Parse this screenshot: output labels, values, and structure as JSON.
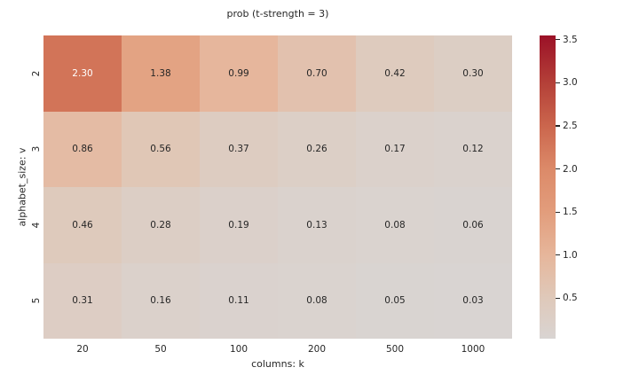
{
  "chart_data": {
    "type": "heatmap",
    "title": "prob (t-strength = 3)",
    "xlabel": "columns: k",
    "ylabel": "alphabet_size: v",
    "x_categories": [
      "20",
      "50",
      "100",
      "200",
      "500",
      "1000"
    ],
    "y_categories": [
      "2",
      "3",
      "4",
      "5"
    ],
    "values": [
      [
        2.3,
        1.38,
        0.99,
        0.7,
        0.42,
        0.3
      ],
      [
        0.86,
        0.56,
        0.37,
        0.26,
        0.17,
        0.12
      ],
      [
        0.46,
        0.28,
        0.19,
        0.13,
        0.08,
        0.06
      ],
      [
        0.31,
        0.16,
        0.11,
        0.08,
        0.05,
        0.03
      ]
    ],
    "value_decimals": 2,
    "grid": "off",
    "legend_position": "colorbar-right",
    "colorbar": {
      "vmin": 0.03,
      "vmax": 3.55,
      "tick_values": [
        3.5,
        3.0,
        2.5,
        2.0,
        1.5,
        1.0,
        0.5
      ],
      "tick_labels": [
        "3.5",
        "3.0",
        "2.5",
        "2.0",
        "1.5",
        "1.0",
        "0.5"
      ],
      "colormap_stops": [
        {
          "value": 0.03,
          "color": "#d9d4d2"
        },
        {
          "value": 0.5,
          "color": "#dfc9ba"
        },
        {
          "value": 1.0,
          "color": "#e6b69b"
        },
        {
          "value": 1.5,
          "color": "#e29d7c"
        },
        {
          "value": 2.0,
          "color": "#dc8a69"
        },
        {
          "value": 2.5,
          "color": "#cb664d"
        },
        {
          "value": 3.0,
          "color": "#b44038"
        },
        {
          "value": 3.55,
          "color": "#9b1127"
        }
      ]
    },
    "styles": {
      "background": "#ffffff",
      "text_color": "#262626",
      "annot_light_color": "#ffffff",
      "white_text_threshold": 2.0
    }
  }
}
